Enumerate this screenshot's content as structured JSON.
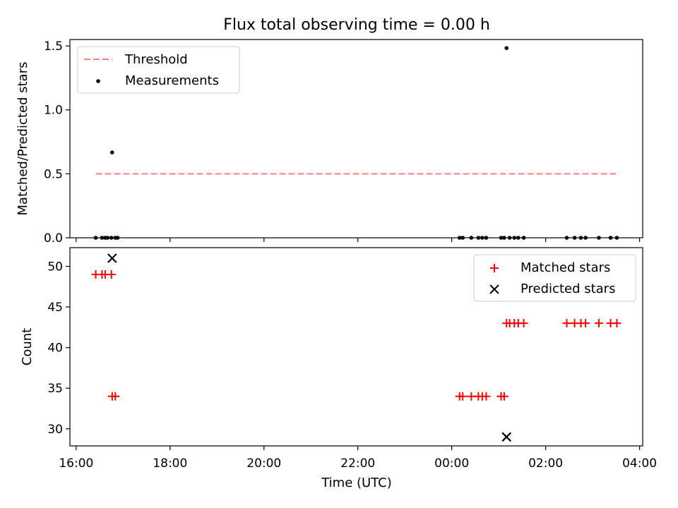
{
  "chart_data": [
    {
      "type": "scatter",
      "title": "Flux total observing time = 0.00 h",
      "xlabel": "",
      "ylabel": "Matched/Predicted stars",
      "xlim": [
        "15:52",
        "04:04 +1d"
      ],
      "ylim": [
        0,
        1.55
      ],
      "xticks": [
        "16:00",
        "18:00",
        "20:00",
        "22:00",
        "00:00",
        "02:00",
        "04:00"
      ],
      "xtick_labels_visible": false,
      "yticks": [
        "0.0",
        "0.5",
        "1.0",
        "1.5"
      ],
      "threshold": {
        "name": "Threshold",
        "y": 0.5,
        "x_start": "16:25",
        "x_end": "03:31 +1d",
        "color": "#ff7f7f",
        "style": "dashed"
      },
      "series": [
        {
          "name": "Measurements",
          "marker": "dot",
          "color": "#000000",
          "points": [
            {
              "x": "16:25",
              "y": 0.0
            },
            {
              "x": "16:33",
              "y": 0.0
            },
            {
              "x": "16:37",
              "y": 0.0
            },
            {
              "x": "16:40",
              "y": 0.0
            },
            {
              "x": "16:45",
              "y": 0.0
            },
            {
              "x": "16:46",
              "y": 0.667
            },
            {
              "x": "16:50",
              "y": 0.0
            },
            {
              "x": "16:53",
              "y": 0.0
            },
            {
              "x": "00:10 +1d",
              "y": 0.0
            },
            {
              "x": "00:14 +1d",
              "y": 0.0
            },
            {
              "x": "00:25 +1d",
              "y": 0.0
            },
            {
              "x": "00:34 +1d",
              "y": 0.0
            },
            {
              "x": "00:39 +1d",
              "y": 0.0
            },
            {
              "x": "00:44 +1d",
              "y": 0.0
            },
            {
              "x": "01:03 +1d",
              "y": 0.0
            },
            {
              "x": "01:07 +1d",
              "y": 0.0
            },
            {
              "x": "01:10 +1d",
              "y": 1.483
            },
            {
              "x": "01:14 +1d",
              "y": 0.0
            },
            {
              "x": "01:20 +1d",
              "y": 0.0
            },
            {
              "x": "01:25 +1d",
              "y": 0.0
            },
            {
              "x": "01:32 +1d",
              "y": 0.0
            },
            {
              "x": "02:27 +1d",
              "y": 0.0
            },
            {
              "x": "02:37 +1d",
              "y": 0.0
            },
            {
              "x": "02:45 +1d",
              "y": 0.0
            },
            {
              "x": "02:51 +1d",
              "y": 0.0
            },
            {
              "x": "03:08 +1d",
              "y": 0.0
            },
            {
              "x": "03:23 +1d",
              "y": 0.0
            },
            {
              "x": "03:31 +1d",
              "y": 0.0
            }
          ]
        }
      ],
      "legend": {
        "placement": "top-left",
        "entries": [
          "Threshold",
          "Measurements"
        ]
      }
    },
    {
      "type": "scatter",
      "title": "",
      "xlabel": "Time (UTC)",
      "ylabel": "Count",
      "xlim": [
        "15:52",
        "04:04 +1d"
      ],
      "ylim": [
        27.9,
        52.3
      ],
      "xticks": [
        "16:00",
        "18:00",
        "20:00",
        "22:00",
        "00:00",
        "02:00",
        "04:00"
      ],
      "yticks": [
        "30",
        "35",
        "40",
        "45",
        "50"
      ],
      "series": [
        {
          "name": "Matched stars",
          "marker": "plus",
          "color": "#ff0000",
          "points": [
            {
              "x": "16:25",
              "y": 49
            },
            {
              "x": "16:33",
              "y": 49
            },
            {
              "x": "16:37",
              "y": 49
            },
            {
              "x": "16:45",
              "y": 49
            },
            {
              "x": "16:46",
              "y": 34
            },
            {
              "x": "16:50",
              "y": 34
            },
            {
              "x": "00:10 +1d",
              "y": 34
            },
            {
              "x": "00:14 +1d",
              "y": 34
            },
            {
              "x": "00:25 +1d",
              "y": 34
            },
            {
              "x": "00:34 +1d",
              "y": 34
            },
            {
              "x": "00:39 +1d",
              "y": 34
            },
            {
              "x": "00:44 +1d",
              "y": 34
            },
            {
              "x": "01:03 +1d",
              "y": 34
            },
            {
              "x": "01:07 +1d",
              "y": 34
            },
            {
              "x": "01:10 +1d",
              "y": 43
            },
            {
              "x": "01:14 +1d",
              "y": 43
            },
            {
              "x": "01:20 +1d",
              "y": 43
            },
            {
              "x": "01:25 +1d",
              "y": 43
            },
            {
              "x": "01:32 +1d",
              "y": 43
            },
            {
              "x": "02:27 +1d",
              "y": 43
            },
            {
              "x": "02:37 +1d",
              "y": 43
            },
            {
              "x": "02:45 +1d",
              "y": 43
            },
            {
              "x": "02:51 +1d",
              "y": 43
            },
            {
              "x": "03:08 +1d",
              "y": 43
            },
            {
              "x": "03:23 +1d",
              "y": 43
            },
            {
              "x": "03:31 +1d",
              "y": 43
            }
          ]
        },
        {
          "name": "Predicted stars",
          "marker": "x",
          "color": "#000000",
          "points": [
            {
              "x": "16:46",
              "y": 51
            },
            {
              "x": "01:10 +1d",
              "y": 29
            }
          ]
        }
      ],
      "legend": {
        "placement": "top-right",
        "entries": [
          "Matched stars",
          "Predicted stars"
        ]
      }
    }
  ]
}
